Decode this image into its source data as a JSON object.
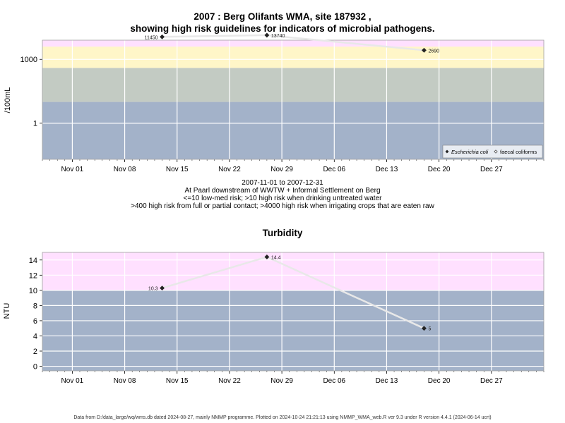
{
  "title_line1": "2007 : Berg Olifants WMA, site 187932 ,",
  "title_line2": "showing high risk guidelines for indicators of microbial pathogens.",
  "subtitle_lines": [
    "2007-11-01 to 2007-12-31",
    "At Paarl downstream of WWTW + Informal Settlement on Berg",
    "<=10 low-med risk; >10 high risk when drinking untreated water",
    ">400 high risk from full or partial contact; >4000 high risk when irrigating crops that are eaten raw"
  ],
  "footer": "Data from D:/data_large/wq/wms.db dated 2024-08-27, mainly NMMP programme. Plotted on 2024-10-24 21:21:13 using NMMP_WMA_web.R ver 9.3 under R version 4.4.1 (2024-06-14 ucrt)",
  "colors": {
    "band_pink": "#FFE0FF",
    "band_yellow": "#FFF6C8",
    "band_grey": "#C3CBC3",
    "band_blue": "#A3B2C9",
    "grid": "#ffffff",
    "line": "#e8e8e8"
  },
  "chart_data": [
    {
      "type": "scatter",
      "title": "",
      "ylabel": "/100mL",
      "y_scale": "log10",
      "ylim": [
        0.02,
        8000
      ],
      "xlim": [
        "2007-10-28",
        "2008-01-03"
      ],
      "x_tick_labels": [
        "Nov 01",
        "Nov 08",
        "Nov 15",
        "Nov 22",
        "Nov 29",
        "Dec 06",
        "Dec 13",
        "Dec 20",
        "Dec 27"
      ],
      "x_ticks": [
        "2007-11-01",
        "2007-11-08",
        "2007-11-15",
        "2007-11-22",
        "2007-11-29",
        "2007-12-06",
        "2007-12-13",
        "2007-12-20",
        "2007-12-27"
      ],
      "y_tick_labels": [
        "1",
        "1000"
      ],
      "y_ticks": [
        1,
        1000
      ],
      "bands": [
        {
          "from": 0.02,
          "to": 10,
          "color": "#A3B2C9"
        },
        {
          "from": 10,
          "to": 400,
          "color": "#C3CBC3"
        },
        {
          "from": 400,
          "to": 4000,
          "color": "#FFF6C8"
        },
        {
          "from": 4000,
          "to": 8000,
          "color": "#FFE0FF"
        }
      ],
      "series": [
        {
          "name": "Escherichia coli",
          "marker": "filled-diamond",
          "points": [
            {
              "x": "2007-11-13",
              "y": 11450,
              "label": "11450",
              "label_side": "left"
            },
            {
              "x": "2007-11-27",
              "y": 13740,
              "label": "13740",
              "label_side": "right"
            },
            {
              "x": "2007-12-18",
              "y": 2690,
              "label": "2690",
              "label_side": "right"
            }
          ]
        },
        {
          "name": "faecal coliforms",
          "marker": "open-diamond",
          "points": []
        }
      ],
      "legend": {
        "placement": "bottom-right",
        "entries": [
          "Escherichia coli",
          "faecal coliforms"
        ]
      }
    },
    {
      "type": "scatter",
      "title": "Turbidity",
      "ylabel": "NTU",
      "y_scale": "linear",
      "ylim": [
        -0.6,
        15.0
      ],
      "xlim": [
        "2007-10-28",
        "2008-01-03"
      ],
      "x_tick_labels": [
        "Nov 01",
        "Nov 08",
        "Nov 15",
        "Nov 22",
        "Nov 29",
        "Dec 06",
        "Dec 13",
        "Dec 20",
        "Dec 27"
      ],
      "x_ticks": [
        "2007-11-01",
        "2007-11-08",
        "2007-11-15",
        "2007-11-22",
        "2007-11-29",
        "2007-12-06",
        "2007-12-13",
        "2007-12-20",
        "2007-12-27"
      ],
      "y_tick_labels": [
        "0",
        "2",
        "4",
        "6",
        "8",
        "10",
        "12",
        "14"
      ],
      "y_ticks": [
        0,
        2,
        4,
        6,
        8,
        10,
        12,
        14
      ],
      "bands": [
        {
          "from": -0.6,
          "to": 10,
          "color": "#A3B2C9"
        },
        {
          "from": 10,
          "to": 15.0,
          "color": "#FFE0FF"
        }
      ],
      "series": [
        {
          "name": "Turbidity",
          "marker": "filled-diamond",
          "points": [
            {
              "x": "2007-11-13",
              "y": 10.3,
              "label": "10.3",
              "label_side": "left"
            },
            {
              "x": "2007-11-27",
              "y": 14.4,
              "label": "14.4",
              "label_side": "right"
            },
            {
              "x": "2007-12-18",
              "y": 5,
              "label": "5",
              "label_side": "right"
            }
          ]
        }
      ]
    }
  ]
}
